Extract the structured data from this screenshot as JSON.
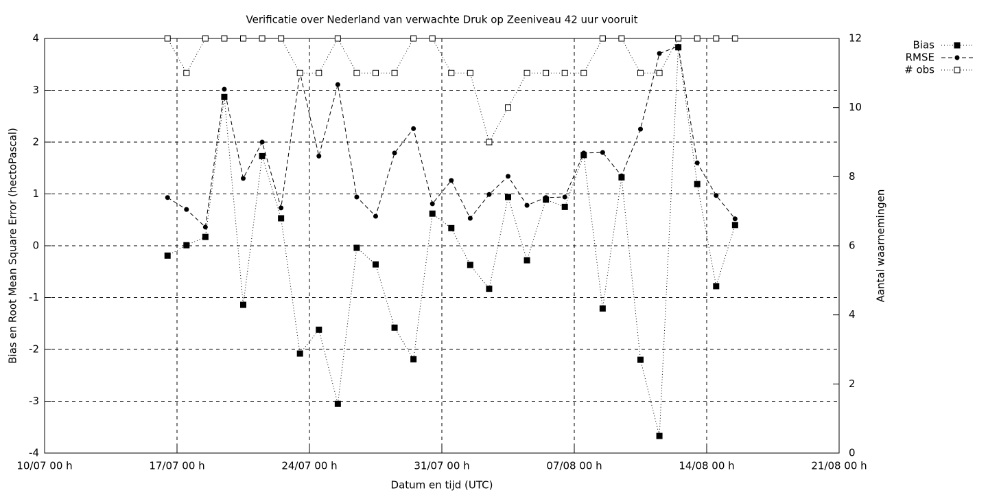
{
  "chart_data": {
    "type": "line",
    "title": "Verificatie over Nederland van verwachte Druk op Zeeniveau 42 uur vooruit",
    "x_label": "Datum en tijd (UTC)",
    "y_label": "Bias en Root Mean Square Error (hectoPascal)",
    "y2_label": "Aantal waarnemingen",
    "x": [
      "16/07 12 h",
      "17/07 12 h",
      "18/07 12 h",
      "19/07 12 h",
      "20/07 12 h",
      "21/07 12 h",
      "22/07 12 h",
      "23/07 12 h",
      "24/07 12 h",
      "25/07 12 h",
      "26/07 12 h",
      "27/07 12 h",
      "28/07 12 h",
      "29/07 12 h",
      "30/07 12 h",
      "31/07 12 h",
      "01/08 12 h",
      "02/08 12 h",
      "03/08 12 h",
      "04/08 12 h",
      "05/08 12 h",
      "06/08 12 h",
      "07/08 12 h",
      "08/08 12 h",
      "09/08 12 h",
      "10/08 12 h",
      "11/08 12 h",
      "12/08 12 h",
      "13/08 12 h",
      "14/08 12 h",
      "15/08 12 h"
    ],
    "series": [
      {
        "name": "Bias",
        "color": "#000000",
        "line_style": "dotted",
        "marker": "filled-square",
        "values": [
          -0.19,
          0.01,
          0.17,
          2.87,
          -1.14,
          1.73,
          0.53,
          -2.08,
          -1.62,
          -3.05,
          -0.04,
          -0.36,
          -1.58,
          -2.19,
          0.62,
          0.34,
          -0.37,
          -0.83,
          0.94,
          -0.28,
          0.89,
          0.75,
          1.75,
          -1.21,
          1.32,
          -2.2,
          -3.67,
          3.83,
          1.19,
          -0.78,
          0.4
        ]
      },
      {
        "name": "RMSE",
        "color": "#000000",
        "line_style": "dashed",
        "marker": "filled-circle",
        "values": [
          0.93,
          0.7,
          0.36,
          3.02,
          1.3,
          2.0,
          0.73,
          3.34,
          1.73,
          3.11,
          0.94,
          0.57,
          1.79,
          2.26,
          0.81,
          1.26,
          0.53,
          0.99,
          1.34,
          0.78,
          0.93,
          0.94,
          1.79,
          1.8,
          1.35,
          2.25,
          3.71,
          3.85,
          1.6,
          0.97,
          0.52
        ]
      },
      {
        "name": "# obs",
        "color": "#000000",
        "line_style": "dotted",
        "marker": "open-square",
        "axis": "y2",
        "values": [
          12,
          11,
          12,
          12,
          12,
          12,
          12,
          11,
          11,
          12,
          11,
          11,
          11,
          12,
          12,
          11,
          11,
          9,
          10,
          11,
          11,
          11,
          11,
          12,
          12,
          11,
          11,
          12,
          12,
          12,
          12
        ]
      }
    ],
    "xlim": [
      "10/07 00 h",
      "21/08 00 h"
    ],
    "xticks": [
      "10/07 00 h",
      "17/07 00 h",
      "24/07 00 h",
      "31/07 00 h",
      "07/08 00 h",
      "14/08 00 h",
      "21/08 00 h"
    ],
    "ylim": [
      -4,
      4
    ],
    "yticks": [
      -4,
      -3,
      -2,
      -1,
      0,
      1,
      2,
      3,
      4
    ],
    "y2lim": [
      0,
      12
    ],
    "y2ticks": [
      0,
      2,
      4,
      6,
      8,
      10,
      12
    ],
    "grid": true,
    "legend": "outside-top-right"
  }
}
